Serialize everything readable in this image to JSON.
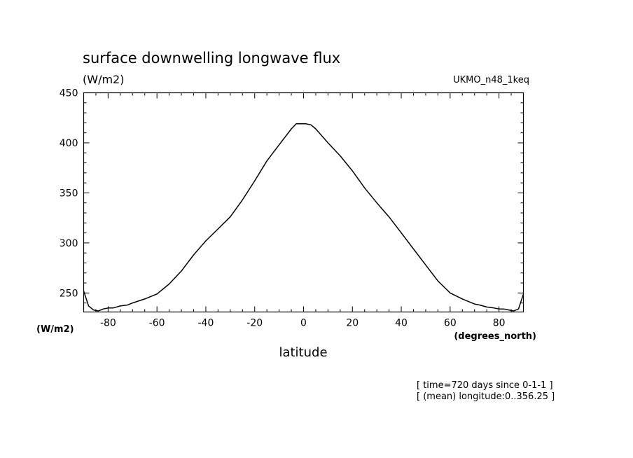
{
  "chart_data": {
    "type": "line",
    "title": "surface downwelling longwave flux",
    "units_label": "(W/m2)",
    "dataset_label": "UKMO_n48_1keq",
    "ylabel": "(W/m2)",
    "xlabel": "latitude",
    "xunits_label": "(degrees_north)",
    "info_lines": [
      "[ time=720 days since 0-1-1 ]",
      "[ (mean) longitude:0..356.25 ]"
    ],
    "xlim": [
      -90,
      90
    ],
    "ylim": [
      231,
      450
    ],
    "xticks": [
      -80,
      -60,
      -40,
      -20,
      0,
      20,
      40,
      60,
      80
    ],
    "xtick_labels": [
      "-80",
      "-60",
      "-40",
      "-20",
      "0",
      "20",
      "40",
      "60",
      "80"
    ],
    "yticks": [
      250,
      300,
      350,
      400,
      450
    ],
    "ytick_labels": [
      "250",
      "300",
      "350",
      "400",
      "450"
    ],
    "grid": false,
    "series": [
      {
        "x": [
          -90,
          -88,
          -86,
          -84,
          -82,
          -80,
          -78,
          -75,
          -72,
          -70,
          -65,
          -60,
          -55,
          -50,
          -45,
          -40,
          -35,
          -30,
          -25,
          -20,
          -15,
          -10,
          -5,
          -3,
          -1,
          1,
          3,
          5,
          10,
          15,
          20,
          25,
          30,
          35,
          40,
          45,
          50,
          55,
          60,
          65,
          70,
          72,
          75,
          78,
          80,
          82,
          84,
          86,
          88,
          90
        ],
        "y": [
          252,
          237,
          233,
          232,
          234,
          235,
          235,
          237,
          238,
          240,
          244,
          249,
          259,
          272,
          288,
          302,
          314,
          326,
          343,
          362,
          382,
          398,
          414,
          419,
          419,
          419,
          418,
          414,
          400,
          387,
          372,
          355,
          340,
          326,
          310,
          294,
          278,
          262,
          250,
          244,
          239,
          238,
          236,
          235,
          234,
          234,
          233,
          232,
          234,
          249
        ]
      }
    ]
  }
}
